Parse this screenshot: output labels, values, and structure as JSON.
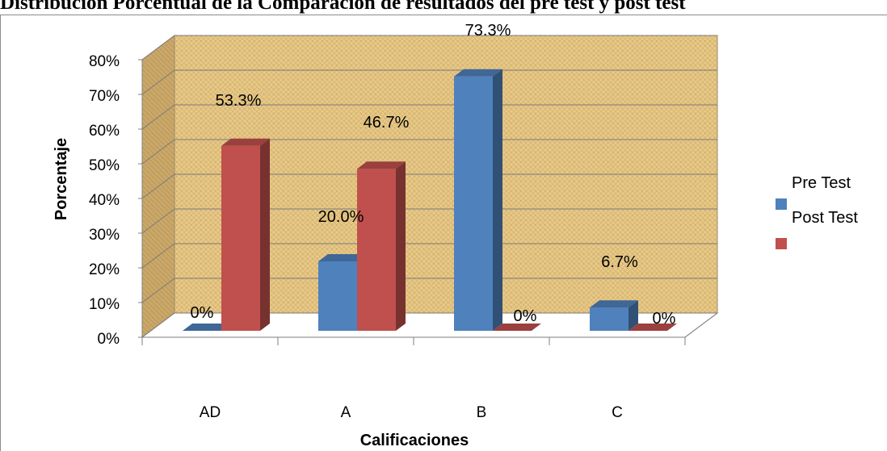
{
  "chart_data": {
    "type": "bar",
    "title": "Distribución Porcentual de la Comparación de resultados del pre test y post test",
    "xlabel": "Calificaciones",
    "ylabel": "Porcentaje",
    "categories": [
      "AD",
      "A",
      "B",
      "C"
    ],
    "ylim": [
      0,
      80
    ],
    "y_ticks": [
      "0%",
      "10%",
      "20%",
      "30%",
      "40%",
      "50%",
      "60%",
      "70%",
      "80%"
    ],
    "series": [
      {
        "name": "Pre Test",
        "color": "#4f81bd",
        "values": [
          0,
          20.0,
          73.3,
          6.7
        ],
        "labels": [
          "0%",
          "20.0%",
          "73.3%",
          "6.7%"
        ]
      },
      {
        "name": "Post Test",
        "color": "#c0504d",
        "values": [
          53.3,
          46.7,
          0,
          0
        ],
        "labels": [
          "53.3%",
          "46.7%",
          "0%",
          "0%"
        ]
      }
    ],
    "legend_position": "right",
    "grid": true
  }
}
